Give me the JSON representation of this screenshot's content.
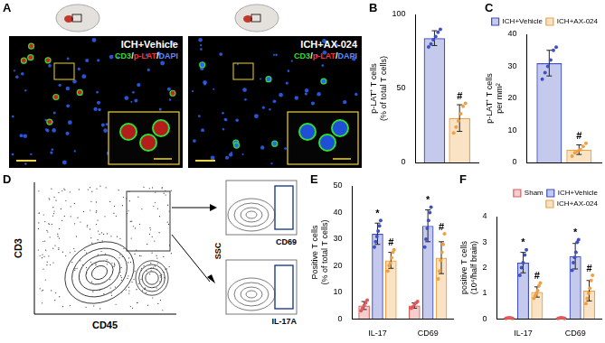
{
  "chart_data": [
    {
      "panel": "B",
      "type": "bar",
      "y_label": [
        "p-LAT⁺ T cells",
        "(% of total T cells)"
      ],
      "categories": [
        null
      ],
      "ylim": [
        0,
        100
      ],
      "yticks": [
        0,
        50,
        100
      ],
      "grid": false,
      "tick_labels": "y",
      "series": [
        {
          "name": "ICH+Vehicle",
          "color": "#3f4fc4",
          "values": [
            84
          ],
          "errors": [
            5
          ],
          "points": [
            [
              78,
              80,
              83,
              85,
              88,
              90
            ]
          ],
          "marks": [
            null
          ]
        },
        {
          "name": "ICH+AX-024",
          "color": "#f0a040",
          "values": [
            30
          ],
          "errors": [
            9
          ],
          "points": [
            [
              20,
              24,
              28,
              33,
              38,
              40
            ]
          ],
          "marks": [
            "#"
          ]
        }
      ]
    },
    {
      "panel": "C",
      "type": "bar",
      "y_label": [
        "p-LAT⁺ T cells",
        "per mm²"
      ],
      "categories": [
        null
      ],
      "ylim": [
        0,
        40
      ],
      "yticks": [
        0,
        10,
        20,
        30,
        40
      ],
      "grid": false,
      "tick_labels": "y",
      "legend": "top",
      "series": [
        {
          "name": "ICH+Vehicle",
          "color": "#3f4fc4",
          "values": [
            31
          ],
          "errors": [
            4
          ],
          "points": [
            [
              26,
              28,
              30,
              32,
              35,
              36
            ]
          ],
          "marks": [
            null
          ]
        },
        {
          "name": "ICH+AX-024",
          "color": "#f0a040",
          "values": [
            4
          ],
          "errors": [
            1.5
          ],
          "points": [
            [
              2,
              3,
              3.5,
              4,
              5,
              6
            ]
          ],
          "marks": [
            "#"
          ]
        }
      ]
    },
    {
      "panel": "E",
      "type": "bar",
      "y_label": [
        "Positive T cells",
        "(% of total T cells)"
      ],
      "categories": [
        "IL-17",
        "CD69"
      ],
      "ylim": [
        0,
        50
      ],
      "yticks": [
        0,
        10,
        20,
        30,
        40,
        50
      ],
      "grid": false,
      "series": [
        {
          "name": "Sham",
          "color": "#e05a5a",
          "values": [
            5,
            5
          ],
          "errors": [
            1.5,
            1
          ],
          "points": [
            [
              3,
              4,
              5,
              6,
              7
            ],
            [
              4,
              4.5,
              5.5,
              6,
              6.5
            ]
          ],
          "marks": [
            null,
            null
          ]
        },
        {
          "name": "ICH+Vehicle",
          "color": "#3f4fc4",
          "values": [
            32,
            35
          ],
          "errors": [
            4,
            6
          ],
          "points": [
            [
              27,
              29,
              31,
              33,
              35,
              37
            ],
            [
              27,
              30,
              34,
              37,
              40,
              42
            ]
          ],
          "marks": [
            "*",
            "*"
          ]
        },
        {
          "name": "ICH+AX-024",
          "color": "#f0a040",
          "values": [
            22,
            23
          ],
          "errors": [
            3,
            6
          ],
          "points": [
            [
              18,
              20,
              21,
              23,
              25,
              26
            ],
            [
              15,
              18,
              22,
              25,
              28,
              32
            ]
          ],
          "marks": [
            "#",
            "#"
          ]
        }
      ]
    },
    {
      "panel": "F",
      "type": "bar",
      "y_label": [
        "positive T cells",
        "(10⁴/half brain)"
      ],
      "categories": [
        "IL-17",
        "CD69"
      ],
      "ylim": [
        0,
        4
      ],
      "yticks": [
        0,
        1,
        2,
        3,
        4
      ],
      "grid": false,
      "legend": "top",
      "series": [
        {
          "name": "Sham",
          "color": "#e05a5a",
          "values": [
            0.03,
            0.03
          ],
          "errors": [
            0.01,
            0.01
          ],
          "points": [
            [
              0.02,
              0.03,
              0.04,
              0.03,
              0.02
            ],
            [
              0.02,
              0.03,
              0.04,
              0.03,
              0.02
            ]
          ],
          "marks": [
            null,
            null
          ]
        },
        {
          "name": "ICH+Vehicle",
          "color": "#3f4fc4",
          "values": [
            2.2,
            2.45
          ],
          "errors": [
            0.4,
            0.5
          ],
          "points": [
            [
              1.7,
              2.0,
              2.2,
              2.5,
              2.7
            ],
            [
              1.9,
              2.2,
              2.4,
              2.6,
              3.0,
              3.1
            ]
          ],
          "marks": [
            "*",
            "*"
          ]
        },
        {
          "name": "ICH+AX-024",
          "color": "#f0a040",
          "values": [
            1.05,
            1.1
          ],
          "errors": [
            0.2,
            0.4
          ],
          "points": [
            [
              0.8,
              0.9,
              1.0,
              1.1,
              1.3,
              1.4
            ],
            [
              0.6,
              0.8,
              1.0,
              1.2,
              1.5,
              1.7
            ]
          ],
          "marks": [
            "#",
            "#"
          ]
        }
      ]
    }
  ],
  "image_panels": [
    {
      "panel": "A",
      "images": [
        "ICH+Vehicle",
        "ICH+AX-024"
      ],
      "stain": [
        {
          "text": "CD3",
          "color": "#33dd33"
        },
        {
          "text": "/",
          "color": "#ffffff"
        },
        {
          "text": "p-LAT",
          "color": "#ff3333"
        },
        {
          "text": "/",
          "color": "#ffffff"
        },
        {
          "text": "DAPI",
          "color": "#5f8dff"
        }
      ]
    },
    {
      "panel": "D",
      "gate_plot": {
        "x_label": "CD45",
        "y_label": "CD3"
      },
      "sub_plots": [
        "CD69",
        "IL-17A"
      ],
      "sub_y_label": "SSC"
    }
  ]
}
